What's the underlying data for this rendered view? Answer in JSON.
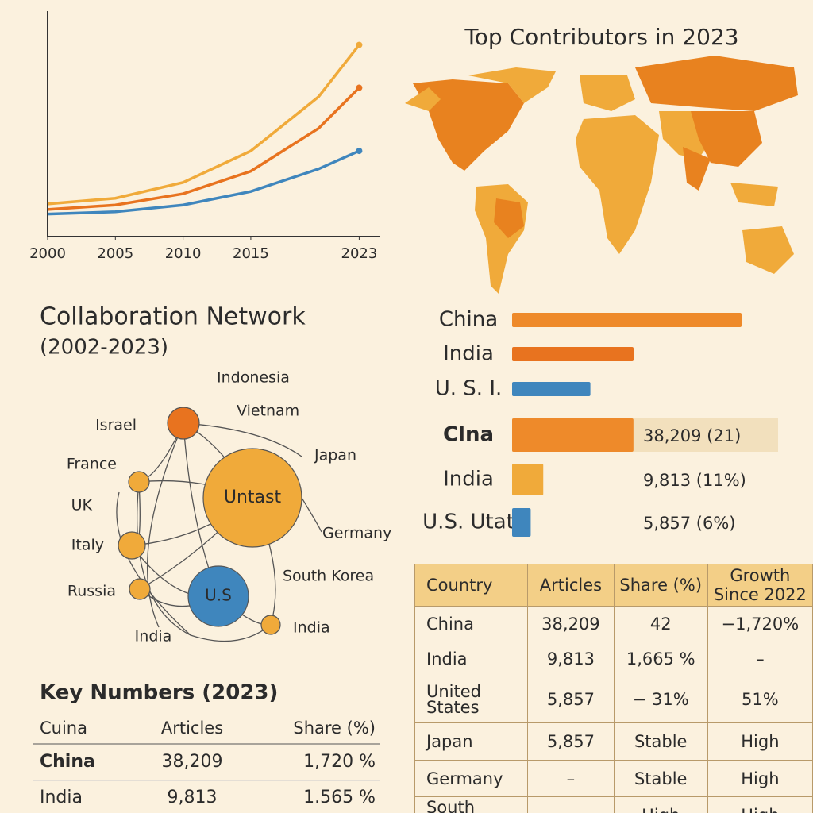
{
  "chart_data": [
    {
      "type": "line",
      "x": [
        2000,
        2005,
        2010,
        2015,
        2020,
        2023
      ],
      "xlim": [
        2000,
        2024.5
      ],
      "xticks": [
        2000,
        2005,
        2010,
        2015,
        2023
      ],
      "ylim": [
        0,
        100
      ],
      "series": [
        {
          "color": "#f0aa3a",
          "values": [
            14.5,
            17,
            24,
            38,
            62,
            85
          ]
        },
        {
          "color": "#e8731f",
          "values": [
            12,
            14,
            19,
            29,
            48,
            66
          ]
        },
        {
          "color": "#3f86bd",
          "values": [
            10,
            11,
            14,
            20,
            30,
            38
          ]
        }
      ]
    },
    {
      "type": "map",
      "title": "Top Contributors in 2023"
    },
    {
      "type": "hbar",
      "categories": [
        "China",
        "India",
        "U. S. I."
      ],
      "values": [
        85,
        45,
        29
      ],
      "xlim": [
        0,
        100
      ],
      "colors": [
        "#ee8a2a",
        "#e8731f",
        "#3f86bd"
      ]
    },
    {
      "type": "hbar",
      "categories": [
        "Clna",
        "India",
        "U.S. Utat"
      ],
      "values": [
        38209,
        9813,
        5857
      ],
      "value_labels": [
        "38,209 (21)",
        "9,813 (11%)",
        "5,857 (6%)"
      ],
      "xlim": [
        0,
        40000
      ],
      "colors": [
        "#ee8a2a",
        "#f0aa3a",
        "#3f86bd"
      ]
    }
  ],
  "network": {
    "title": "Collaboration Network",
    "subtitle": "(2002-2023)",
    "nodes": [
      "Untast",
      "U.S"
    ],
    "labels": [
      "Indonesia",
      "Vietnam",
      "Israel",
      "Japan",
      "France",
      "UK",
      "Germany",
      "Italy",
      "South Korea",
      "Russia",
      "India",
      "India"
    ]
  },
  "key_numbers": {
    "title": "Key Numbers (2023)",
    "headers": [
      "Cuina",
      "Articles",
      "Share (%)"
    ],
    "rows": [
      [
        "China",
        "38,209",
        "1,720 %"
      ],
      [
        "India",
        "9,813",
        "1.565 %"
      ]
    ]
  },
  "table": {
    "headers": [
      "Country",
      "Articles",
      "Share (%)",
      "Growth Since 2022"
    ],
    "rows": [
      [
        "China",
        "38,209",
        "42",
        "−1,720%"
      ],
      [
        "India",
        "9,813",
        "1,665 %",
        "–"
      ],
      [
        "United States",
        "5,857",
        "− 31%",
        "51%"
      ],
      [
        "Japan",
        "5,857",
        "Stable",
        "High"
      ],
      [
        "Germany",
        "–",
        "Stable",
        "High"
      ],
      [
        "South Kicca",
        "–",
        "High",
        "High"
      ]
    ]
  }
}
